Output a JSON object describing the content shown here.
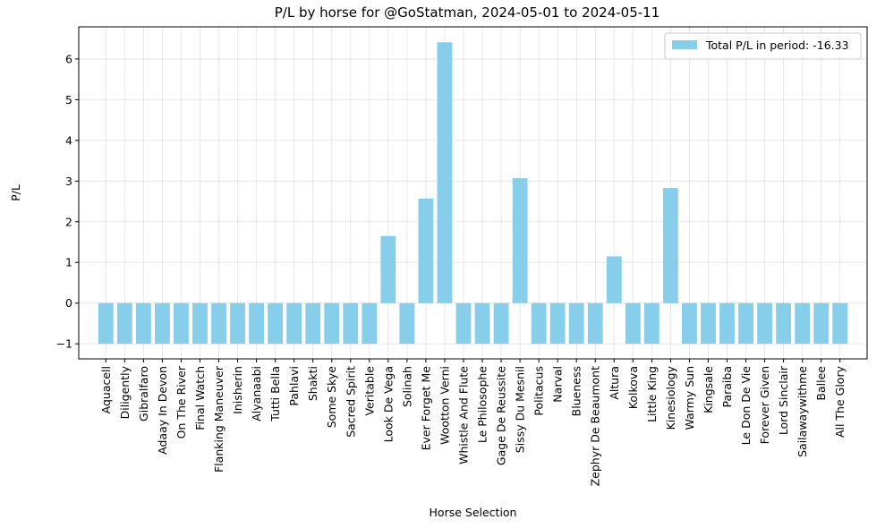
{
  "chart_data": {
    "type": "bar",
    "title": "P/L by horse for @GoStatman, 2024-05-01 to 2024-05-11",
    "xlabel": "Horse Selection",
    "ylabel": "P/L",
    "ylim": [
      -1.37,
      6.79
    ],
    "yticks": [
      -1,
      0,
      1,
      2,
      3,
      4,
      5,
      6
    ],
    "ytick_labels": [
      "−1",
      "0",
      "1",
      "2",
      "3",
      "4",
      "5",
      "6"
    ],
    "grid": true,
    "legend_position": "top-right",
    "bar_color": "#87ceeb",
    "series": [
      {
        "name": "Total P/L in period: -16.33",
        "values": [
          -1,
          -1,
          -1,
          -1,
          -1,
          -1,
          -1,
          -1,
          -1,
          -1,
          -1,
          -1,
          -1,
          -1,
          -1,
          1.65,
          -1,
          2.57,
          6.41,
          -1,
          -1,
          -1,
          3.07,
          -1,
          -1,
          -1,
          -1,
          1.15,
          -1,
          -1,
          2.83,
          -1,
          -1,
          -1,
          -1,
          -1,
          -1,
          -1,
          -1,
          -1
        ]
      }
    ],
    "categories": [
      "Aquacell",
      "Diligently",
      "Gibralfaro",
      "Adaay In Devon",
      "On The River",
      "Final Watch",
      "Flanking Maneuver",
      "Inisherin",
      "Alyanaabi",
      "Tutti Bella",
      "Pahlavi",
      "Shakti",
      "Some Skye",
      "Sacred Spirit",
      "Veritable",
      "Look De Vega",
      "Solinah",
      "Ever Forget Me",
      "Wootton Verni",
      "Whistle And Flute",
      "Le Philosophe",
      "Gage De Reussite",
      "Sissy Du Mesnil",
      "Politacus",
      "Narval",
      "Blueness",
      "Zephyr De Beaumont",
      "Altura",
      "Kolkova",
      "Little King",
      "Kinesiology",
      "Warmy Sun",
      "Kingsale",
      "Paraiba",
      "Le Don De Vie",
      "Forever Given",
      "Lord Sinclair",
      "Sailawaywithme",
      "Ballee",
      "All The Glory"
    ]
  }
}
